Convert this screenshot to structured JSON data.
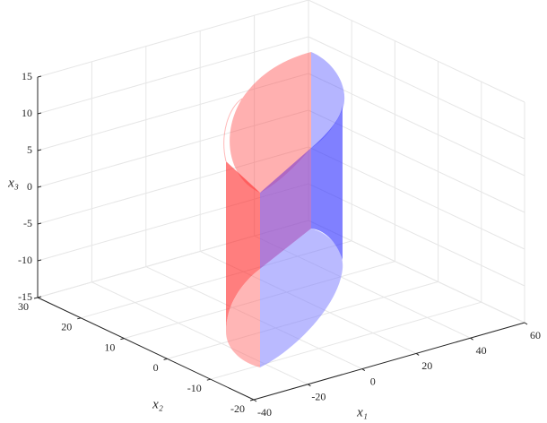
{
  "chart_data": {
    "type": "surface3d",
    "xlabel": "x₁",
    "ylabel": "x₂",
    "zlabel": "x₃",
    "xlim": [
      -40,
      60
    ],
    "xticks": [
      -40,
      -20,
      0,
      20,
      40,
      60
    ],
    "ylim": [
      -20,
      30
    ],
    "yticks": [
      -20,
      -10,
      0,
      10,
      20,
      30
    ],
    "zlim": [
      -15,
      15
    ],
    "zticks": [
      -15,
      -10,
      -5,
      0,
      5,
      10,
      15
    ],
    "grid": true
  }
}
